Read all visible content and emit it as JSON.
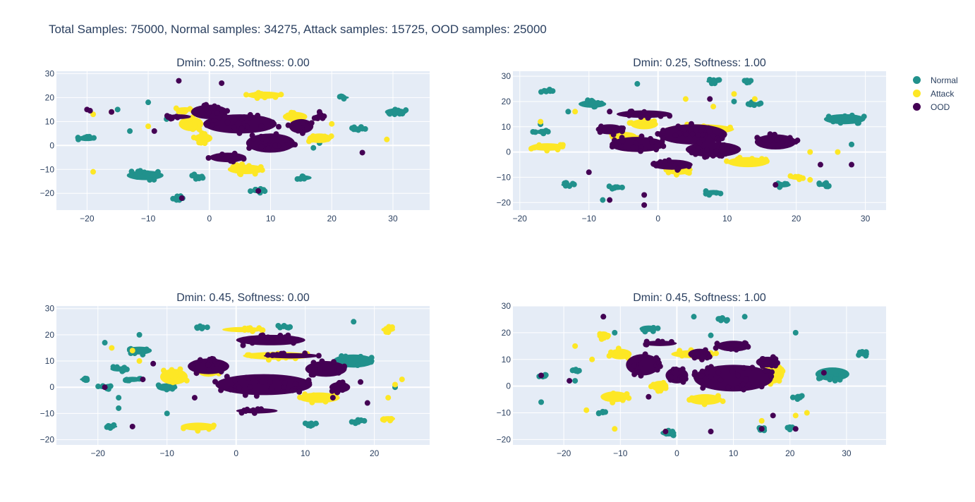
{
  "title": "Total Samples: 75000, Normal samples: 34275, Attack samples: 15725, OOD samples: 25000",
  "legend": [
    {
      "name": "Normal",
      "color": "#21918c"
    },
    {
      "name": "Attack",
      "color": "#fde725"
    },
    {
      "name": "OOD",
      "color": "#440154"
    }
  ],
  "chart_data": [
    {
      "type": "scatter",
      "title": "Dmin: 0.25, Softness: 0.00",
      "xlim": [
        -25,
        36
      ],
      "ylim": [
        -27,
        31
      ],
      "xticks": [
        -20,
        -10,
        0,
        10,
        20,
        30
      ],
      "yticks": [
        -20,
        -10,
        0,
        10,
        20,
        30
      ],
      "xlabel": "",
      "ylabel": "",
      "grid": true,
      "clusters": {
        "OOD": [
          [
            5,
            9,
            6,
            4
          ],
          [
            0,
            14,
            3,
            3
          ],
          [
            10,
            1,
            4,
            4
          ],
          [
            3,
            -5,
            3,
            2
          ],
          [
            15,
            8,
            2,
            3
          ],
          [
            -5,
            12,
            2,
            1
          ],
          [
            18,
            12,
            1,
            1
          ]
        ],
        "Attack": [
          [
            9,
            21,
            3,
            1.5
          ],
          [
            -3,
            9,
            2,
            3
          ],
          [
            -4,
            15,
            1.5,
            1
          ],
          [
            14,
            12,
            2,
            2
          ],
          [
            18,
            3,
            2,
            2
          ],
          [
            6,
            -10,
            3,
            2
          ],
          [
            -1,
            3,
            1.5,
            2
          ]
        ],
        "Normal": [
          [
            -10.5,
            -12.5,
            3,
            2
          ],
          [
            30.5,
            14,
            1.8,
            1.5
          ],
          [
            -20,
            3,
            1.5,
            1.2
          ],
          [
            15.5,
            -13.5,
            1.2,
            1
          ],
          [
            24.5,
            7,
            1.2,
            1
          ],
          [
            8,
            -19,
            1.2,
            1
          ],
          [
            -2,
            -13,
            1,
            1
          ],
          [
            -5,
            -22,
            1,
            0.8
          ],
          [
            22,
            20,
            0.8,
            0.6
          ]
        ]
      },
      "points": {
        "OOD": [
          [
            -20,
            15
          ],
          [
            -16,
            14
          ],
          [
            8,
            -19
          ],
          [
            25,
            -3
          ],
          [
            -5,
            27
          ],
          [
            2,
            26
          ],
          [
            -4.5,
            -22
          ],
          [
            18,
            14
          ],
          [
            -9,
            6
          ],
          [
            -19.5,
            14.5
          ]
        ],
        "Attack": [
          [
            -19,
            -11
          ],
          [
            -19,
            13
          ],
          [
            29,
            2.5
          ],
          [
            -16,
            14
          ],
          [
            20,
            9
          ],
          [
            -10,
            8
          ]
        ],
        "Normal": [
          [
            -15,
            15
          ],
          [
            -10,
            18
          ],
          [
            -13,
            6
          ],
          [
            17,
            -1
          ],
          [
            -7,
            11
          ],
          [
            25,
            7
          ],
          [
            18,
            1
          ]
        ]
      }
    },
    {
      "type": "scatter",
      "title": "Dmin: 0.25, Softness: 1.00",
      "xlim": [
        -21,
        33
      ],
      "ylim": [
        -23,
        32
      ],
      "xticks": [
        -20,
        -10,
        0,
        10,
        20,
        30
      ],
      "yticks": [
        -20,
        -10,
        0,
        10,
        20,
        30
      ],
      "xlabel": "",
      "ylabel": "",
      "grid": true,
      "clusters": {
        "OOD": [
          [
            5,
            7,
            5,
            4
          ],
          [
            8,
            1,
            4,
            3
          ],
          [
            -3,
            3,
            4,
            3
          ],
          [
            -2,
            15,
            4,
            1.5
          ],
          [
            17,
            4,
            3,
            3
          ],
          [
            -7,
            9,
            2,
            2
          ],
          [
            2,
            -5,
            3,
            2
          ]
        ],
        "Attack": [
          [
            -16,
            2,
            2.5,
            1.5
          ],
          [
            6,
            9,
            5,
            2
          ],
          [
            -2,
            11,
            2,
            2
          ],
          [
            13,
            -4,
            3,
            2
          ],
          [
            3,
            -7,
            2,
            2
          ],
          [
            -5,
            6,
            2,
            2
          ],
          [
            20,
            -10,
            1,
            1
          ]
        ],
        "Normal": [
          [
            27,
            13,
            3,
            2
          ],
          [
            -9.5,
            19,
            2,
            1.5
          ],
          [
            -16,
            24,
            1,
            0.8
          ],
          [
            -6,
            -14,
            1.2,
            1
          ],
          [
            8,
            -16,
            1.2,
            1
          ],
          [
            18,
            -13,
            1.2,
            1
          ],
          [
            24,
            -13,
            1,
            0.8
          ],
          [
            8,
            28,
            1,
            0.8
          ],
          [
            13,
            28,
            0.8,
            0.6
          ],
          [
            14,
            19,
            1,
            0.8
          ],
          [
            -17,
            8,
            1,
            0.8
          ],
          [
            -13,
            -13,
            1,
            0.8
          ]
        ]
      },
      "points": {
        "OOD": [
          [
            -7,
            16
          ],
          [
            -4,
            16
          ],
          [
            7.5,
            21
          ],
          [
            -2,
            -17
          ],
          [
            17,
            -13
          ],
          [
            28,
            -5
          ],
          [
            -2,
            -21
          ],
          [
            -7,
            -19
          ],
          [
            23.5,
            -5
          ],
          [
            -10,
            -8
          ]
        ],
        "Attack": [
          [
            11,
            23
          ],
          [
            4,
            21
          ],
          [
            14,
            21
          ],
          [
            22,
            -11
          ],
          [
            26,
            0
          ],
          [
            -12,
            16
          ],
          [
            -17,
            12
          ],
          [
            8,
            18
          ],
          [
            22,
            0
          ]
        ],
        "Normal": [
          [
            -17,
            11
          ],
          [
            -8,
            -19
          ],
          [
            28,
            3
          ],
          [
            11,
            20
          ],
          [
            -13,
            16
          ],
          [
            18,
            5
          ],
          [
            -3,
            27
          ]
        ]
      }
    },
    {
      "type": "scatter",
      "title": "Dmin: 0.45, Softness: 0.00",
      "xlim": [
        -26,
        28
      ],
      "ylim": [
        -22,
        31
      ],
      "xticks": [
        -20,
        -10,
        0,
        10,
        20
      ],
      "yticks": [
        -20,
        -10,
        0,
        10,
        20,
        30
      ],
      "xlabel": "",
      "ylabel": "",
      "grid": true,
      "clusters": {
        "OOD": [
          [
            4,
            1,
            7,
            4
          ],
          [
            5,
            18,
            5,
            2
          ],
          [
            -4,
            8,
            3,
            3
          ],
          [
            13,
            7,
            3,
            3
          ],
          [
            8,
            12,
            4,
            1
          ],
          [
            15,
            0,
            1.5,
            2
          ],
          [
            3,
            -9,
            3,
            1
          ]
        ],
        "Attack": [
          [
            -5.5,
            -15,
            2.5,
            1.5
          ],
          [
            6,
            12,
            5,
            1.5
          ],
          [
            -9,
            4,
            2,
            3
          ],
          [
            12,
            -4,
            3,
            2
          ],
          [
            1,
            22,
            3,
            1
          ],
          [
            -4,
            6,
            1.5,
            2
          ],
          [
            22,
            -12,
            1,
            1
          ],
          [
            22,
            22,
            1,
            1
          ]
        ],
        "Normal": [
          [
            17,
            10,
            3,
            2.5
          ],
          [
            -14,
            14,
            1.8,
            1.5
          ],
          [
            -10,
            0,
            1.5,
            1.5
          ],
          [
            -17,
            7,
            1.2,
            1
          ],
          [
            -5,
            23,
            0.8,
            0.6
          ],
          [
            7,
            23,
            1,
            0.8
          ],
          [
            11,
            -14,
            1,
            0.8
          ],
          [
            17.5,
            -13,
            1,
            0.8
          ],
          [
            -18,
            -15,
            0.8,
            0.6
          ],
          [
            -15,
            3,
            1.2,
            1
          ],
          [
            -19,
            0,
            1,
            0.8
          ],
          [
            -22,
            3,
            0.6,
            0.6
          ]
        ]
      },
      "points": {
        "OOD": [
          [
            -19,
            0
          ],
          [
            -12,
            9
          ],
          [
            -15,
            -15
          ],
          [
            18,
            2
          ],
          [
            14,
            -4
          ],
          [
            19,
            -6
          ],
          [
            -6,
            -4
          ],
          [
            1,
            16
          ],
          [
            -13.5,
            3
          ]
        ],
        "Attack": [
          [
            -18,
            15
          ],
          [
            -14,
            10
          ],
          [
            24,
            3
          ],
          [
            22,
            -4
          ],
          [
            23,
            1
          ],
          [
            22,
            22
          ],
          [
            -15,
            14
          ]
        ],
        "Normal": [
          [
            -19,
            17
          ],
          [
            -17,
            -8
          ],
          [
            -22,
            3
          ],
          [
            -10,
            -10
          ],
          [
            17,
            25
          ],
          [
            23,
            0
          ],
          [
            -17,
            -4
          ],
          [
            -14,
            20
          ]
        ]
      }
    },
    {
      "type": "scatter",
      "title": "Dmin: 0.45, Softness: 1.00",
      "xlim": [
        -29,
        37
      ],
      "ylim": [
        -22,
        30
      ],
      "xticks": [
        -20,
        -10,
        0,
        10,
        20,
        30
      ],
      "yticks": [
        -20,
        -10,
        0,
        10,
        20,
        30
      ],
      "xlabel": "",
      "ylabel": "",
      "grid": true,
      "clusters": {
        "OOD": [
          [
            10,
            3,
            7,
            5
          ],
          [
            -6,
            8,
            3,
            4
          ],
          [
            0,
            4,
            2,
            3
          ],
          [
            10,
            15,
            3,
            2
          ],
          [
            4,
            12,
            2,
            2
          ],
          [
            16,
            9,
            2,
            2
          ],
          [
            -3,
            16,
            3,
            1
          ]
        ],
        "Attack": [
          [
            -11,
            -4,
            2.5,
            2
          ],
          [
            3,
            12,
            4,
            1.5
          ],
          [
            17,
            5,
            2,
            4
          ],
          [
            -10,
            12,
            2,
            2
          ],
          [
            5,
            -5,
            3,
            2
          ],
          [
            -3,
            0,
            1.5,
            2
          ],
          [
            -13,
            19,
            1,
            1.5
          ]
        ],
        "Normal": [
          [
            27.5,
            4.5,
            3,
            2.5
          ],
          [
            -5,
            21.5,
            1.6,
            1.2
          ],
          [
            -1.5,
            -17.5,
            1.4,
            1.2
          ],
          [
            8,
            25,
            1,
            0.8
          ],
          [
            21.5,
            -4,
            1,
            0.8
          ],
          [
            33,
            12,
            1,
            0.8
          ],
          [
            15,
            -16,
            0.8,
            0.6
          ],
          [
            20,
            -16,
            0.8,
            0.6
          ],
          [
            -24,
            4,
            0.8,
            0.6
          ],
          [
            -18,
            6,
            0.8,
            0.6
          ],
          [
            -13,
            -10,
            0.8,
            0.6
          ]
        ]
      },
      "points": {
        "OOD": [
          [
            26,
            5
          ],
          [
            -24,
            4
          ],
          [
            -5,
            -4
          ],
          [
            -2,
            -17
          ],
          [
            21,
            -16
          ],
          [
            15,
            -16
          ],
          [
            17,
            -11
          ],
          [
            6,
            -17
          ],
          [
            -19,
            2
          ],
          [
            -13,
            26
          ]
        ],
        "Attack": [
          [
            -11,
            -16
          ],
          [
            -2,
            -17
          ],
          [
            23,
            -10
          ],
          [
            15,
            -13
          ],
          [
            21,
            -11
          ],
          [
            -16,
            -9
          ],
          [
            -18,
            15
          ],
          [
            -15,
            10
          ]
        ],
        "Normal": [
          [
            -13,
            26
          ],
          [
            3,
            26
          ],
          [
            -24,
            -6
          ],
          [
            -18,
            2
          ],
          [
            21,
            20
          ],
          [
            -11,
            20
          ],
          [
            12,
            26
          ],
          [
            6,
            19
          ]
        ]
      }
    }
  ]
}
